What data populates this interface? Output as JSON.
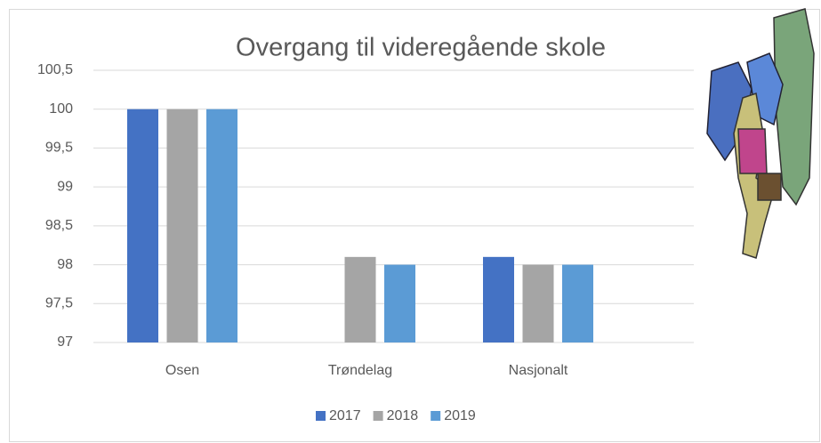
{
  "chart_data": {
    "type": "bar",
    "title": "Overgang til videregående skole",
    "categories": [
      "Osen",
      "Trøndelag",
      "Nasjonalt"
    ],
    "series": [
      {
        "name": "2017",
        "color": "#4472c4",
        "values": [
          100,
          null,
          98.1
        ]
      },
      {
        "name": "2018",
        "color": "#a5a5a5",
        "values": [
          100,
          98.1,
          98
        ]
      },
      {
        "name": "2019",
        "color": "#5b9bd5",
        "values": [
          100,
          98,
          98
        ]
      }
    ],
    "ylim": [
      97,
      100.5
    ],
    "yticks": [
      97,
      {
        "value": 97.5,
        "label": "97,5"
      },
      98,
      {
        "value": 98.5,
        "label": "98,5"
      },
      99,
      {
        "value": 99.5,
        "label": "99,5"
      },
      100,
      {
        "value": 100.5,
        "label": "100,5"
      }
    ],
    "grid": true,
    "legend": "bottom"
  }
}
